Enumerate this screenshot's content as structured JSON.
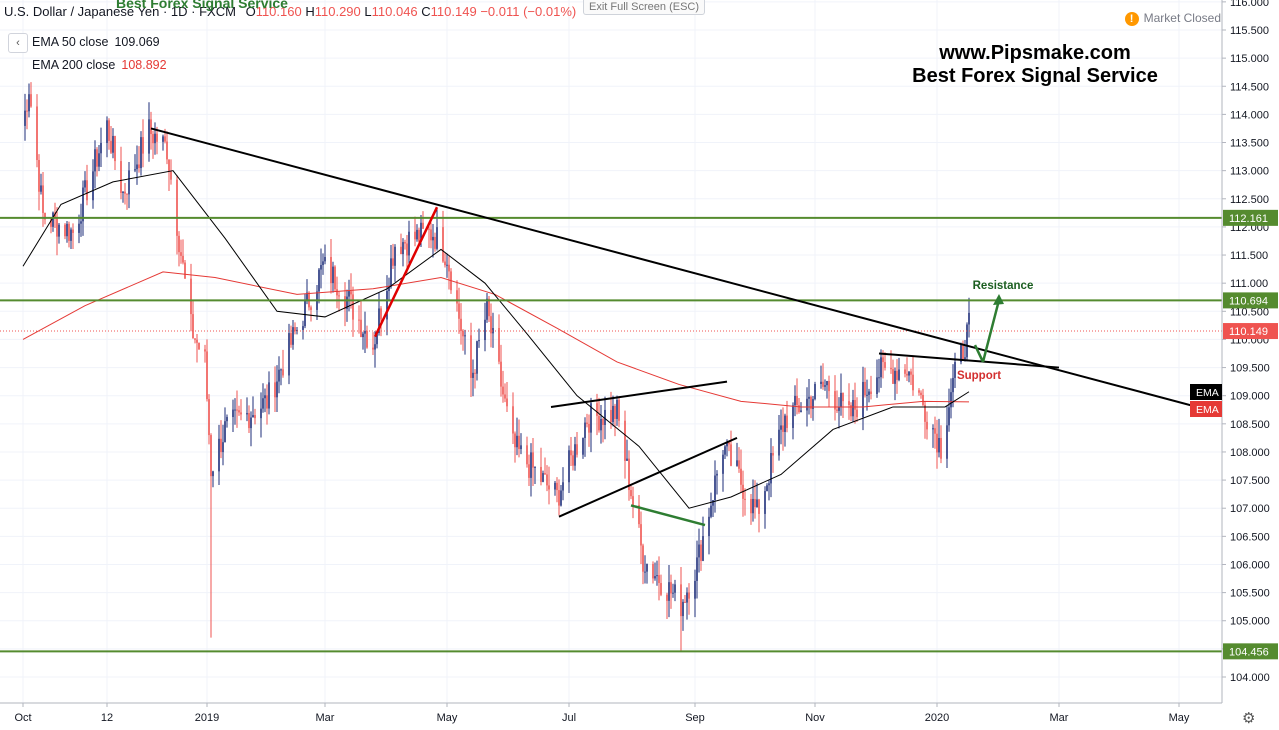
{
  "header": {
    "symbol": "U.S. Dollar / Japanese Yen · 1D · FXCM",
    "open_label": "O",
    "open": "110.160",
    "high_label": "H",
    "high": "110.290",
    "low_label": "L",
    "low": "110.046",
    "close_label": "C",
    "close": "110.149",
    "change": "−0.011 (−0.01%)"
  },
  "legend": {
    "ema50_label": "EMA 50 close",
    "ema50_value": "109.069",
    "ema200_label": "EMA 200 close",
    "ema200_value": "108.892"
  },
  "exit_fullscreen": "Exit Full Screen (ESC)",
  "top_watermark": "Best Forex Signal Service",
  "market_status": "Market Closed",
  "market_status_icon": "!",
  "watermark": {
    "line1": "www.Pipsmake.com",
    "line2": "Best Forex Signal Service"
  },
  "colors": {
    "up": "#1e2e7a",
    "down": "#ef5350",
    "ema50": "#000000",
    "ema200": "#e53935",
    "level": "#558b2f",
    "arrow": "#2e7d32",
    "support": "#d32f2f",
    "resistance": "#1b5e20"
  },
  "chart_data": {
    "type": "candlestick",
    "title": "U.S. Dollar / Japanese Yen",
    "timeframe": "1D",
    "x_labels": [
      {
        "label": "Oct",
        "date": "2018-10-01"
      },
      {
        "label": "12",
        "date": "2018-11-12"
      },
      {
        "label": "2019",
        "date": "2019-01-01"
      },
      {
        "label": "Mar",
        "date": "2019-03-01"
      },
      {
        "label": "May",
        "date": "2019-05-01"
      },
      {
        "label": "Jul",
        "date": "2019-07-01"
      },
      {
        "label": "Sep",
        "date": "2019-09-02"
      },
      {
        "label": "Nov",
        "date": "2019-11-01"
      },
      {
        "label": "2020",
        "date": "2020-01-01"
      },
      {
        "label": "Mar",
        "date": "2020-03-02"
      },
      {
        "label": "May",
        "date": "2020-05-01"
      }
    ],
    "ylim": [
      103.6,
      116.1
    ],
    "y_ticks": [
      104.0,
      104.5,
      105.0,
      105.5,
      106.0,
      106.5,
      107.0,
      107.5,
      108.0,
      108.5,
      109.0,
      109.5,
      110.0,
      110.5,
      111.0,
      111.5,
      112.0,
      112.5,
      113.0,
      113.5,
      114.0,
      114.5,
      115.0,
      115.5,
      116.0
    ],
    "y_tick_labels": [
      "104.000",
      "104.500",
      "105.000",
      "105.500",
      "106.000",
      "106.500",
      "107.000",
      "107.500",
      "108.000",
      "108.500",
      "109.000",
      "109.500",
      "110.000",
      "110.500",
      "111.000",
      "111.500",
      "112.000",
      "112.500",
      "113.000",
      "113.500",
      "114.000",
      "114.500",
      "115.000",
      "115.500",
      "116.000"
    ],
    "price_anchors": [
      [
        "2018-10-01",
        113.8
      ],
      [
        "2018-10-04",
        114.5
      ],
      [
        "2018-10-11",
        112.2
      ],
      [
        "2018-10-26",
        111.9
      ],
      [
        "2018-11-12",
        113.8
      ],
      [
        "2018-11-20",
        112.6
      ],
      [
        "2018-12-03",
        113.7
      ],
      [
        "2018-12-12",
        113.4
      ],
      [
        "2018-12-24",
        110.2
      ],
      [
        "2018-12-31",
        109.6
      ],
      [
        "2019-01-03",
        107.7
      ],
      [
        "2019-01-10",
        108.4
      ],
      [
        "2019-01-31",
        108.9
      ],
      [
        "2019-02-28",
        111.3
      ],
      [
        "2019-03-08",
        111.0
      ],
      [
        "2019-03-25",
        109.9
      ],
      [
        "2019-04-05",
        111.7
      ],
      [
        "2019-04-24",
        111.9
      ],
      [
        "2019-05-01",
        111.5
      ],
      [
        "2019-05-13",
        109.3
      ],
      [
        "2019-05-21",
        110.5
      ],
      [
        "2019-06-03",
        108.1
      ],
      [
        "2019-06-25",
        107.2
      ],
      [
        "2019-07-10",
        108.6
      ],
      [
        "2019-07-25",
        108.7
      ],
      [
        "2019-08-07",
        106.1
      ],
      [
        "2019-08-26",
        105.3
      ],
      [
        "2019-09-03",
        106.0
      ],
      [
        "2019-09-16",
        108.1
      ],
      [
        "2019-10-03",
        106.9
      ],
      [
        "2019-10-17",
        108.6
      ],
      [
        "2019-11-07",
        109.2
      ],
      [
        "2019-11-18",
        108.6
      ],
      [
        "2019-12-01",
        109.4
      ],
      [
        "2019-12-17",
        109.5
      ],
      [
        "2020-01-03",
        108.1
      ],
      [
        "2020-01-08",
        109.1
      ],
      [
        "2020-01-17",
        110.2
      ]
    ],
    "notable_extremes": [
      {
        "date": "2018-10-04",
        "high": 114.55
      },
      {
        "date": "2019-01-03",
        "low": 104.7
      },
      {
        "date": "2019-08-26",
        "low": 104.45
      }
    ],
    "series": [
      {
        "name": "EMA 50 close",
        "last": 109.069
      },
      {
        "name": "EMA 200 close",
        "last": 108.892
      }
    ],
    "ema50_anchors": [
      [
        "2018-10-01",
        111.3
      ],
      [
        "2018-10-20",
        112.4
      ],
      [
        "2018-11-15",
        112.8
      ],
      [
        "2018-12-15",
        113.0
      ],
      [
        "2019-01-10",
        111.8
      ],
      [
        "2019-02-05",
        110.5
      ],
      [
        "2019-03-01",
        110.4
      ],
      [
        "2019-04-01",
        110.9
      ],
      [
        "2019-04-28",
        111.6
      ],
      [
        "2019-05-20",
        111.0
      ],
      [
        "2019-06-10",
        110.1
      ],
      [
        "2019-07-05",
        109.0
      ],
      [
        "2019-08-05",
        108.1
      ],
      [
        "2019-08-30",
        107.0
      ],
      [
        "2019-09-20",
        107.2
      ],
      [
        "2019-10-15",
        107.6
      ],
      [
        "2019-11-10",
        108.4
      ],
      [
        "2019-12-10",
        108.8
      ],
      [
        "2020-01-05",
        108.8
      ],
      [
        "2020-01-17",
        109.07
      ]
    ],
    "ema200_anchors": [
      [
        "2018-10-01",
        110.0
      ],
      [
        "2018-11-01",
        110.6
      ],
      [
        "2018-12-10",
        111.2
      ],
      [
        "2019-01-05",
        111.1
      ],
      [
        "2019-02-15",
        110.8
      ],
      [
        "2019-03-25",
        110.9
      ],
      [
        "2019-04-28",
        111.1
      ],
      [
        "2019-05-25",
        110.8
      ],
      [
        "2019-06-25",
        110.2
      ],
      [
        "2019-07-25",
        109.6
      ],
      [
        "2019-08-25",
        109.2
      ],
      [
        "2019-09-25",
        108.9
      ],
      [
        "2019-10-25",
        108.8
      ],
      [
        "2019-11-25",
        108.8
      ],
      [
        "2019-12-25",
        108.9
      ],
      [
        "2020-01-17",
        108.89
      ]
    ],
    "horizontal_levels": [
      112.161,
      110.694,
      104.456
    ],
    "current_price": 110.149,
    "annotations": [
      {
        "text": "Resistance",
        "date": "2020-01-24",
        "y": 110.9
      },
      {
        "text": "Support",
        "date": "2020-01-22",
        "y": 109.3
      }
    ],
    "trendlines": [
      {
        "color": "black",
        "from": [
          "2018-12-04",
          113.75
        ],
        "to": [
          "2020-06-16",
          108.45
        ]
      },
      {
        "color": "black",
        "from": [
          "2019-12-03",
          109.75
        ],
        "to": [
          "2020-03-02",
          109.5
        ]
      },
      {
        "color": "black",
        "from": [
          "2019-06-22",
          108.8
        ],
        "to": [
          "2019-09-18",
          109.25
        ]
      },
      {
        "color": "black",
        "from": [
          "2019-06-26",
          106.85
        ],
        "to": [
          "2019-09-23",
          108.25
        ]
      },
      {
        "color": "green",
        "from": [
          "2019-08-01",
          107.05
        ],
        "to": [
          "2019-09-07",
          106.7
        ]
      },
      {
        "color": "red",
        "from": [
          "2019-03-26",
          110.05
        ],
        "to": [
          "2019-04-26",
          112.35
        ]
      },
      {
        "color": "green",
        "from": [
          "2020-01-20",
          109.9
        ],
        "to": [
          "2020-01-24",
          109.6
        ]
      },
      {
        "color": "green",
        "from": [
          "2020-01-24",
          109.6
        ],
        "to": [
          "2020-02-01",
          110.7
        ]
      }
    ],
    "price_tags": [
      {
        "text": "112.161",
        "value": 112.161,
        "kind": "level"
      },
      {
        "text": "110.694",
        "value": 110.694,
        "kind": "level"
      },
      {
        "text": "110.149",
        "value": 110.149,
        "kind": "price"
      },
      {
        "text": "104.456",
        "value": 104.456,
        "kind": "level"
      }
    ],
    "ema_tags": [
      {
        "text": "EMA",
        "value": 109.069,
        "series": "ema50"
      },
      {
        "text": "EMA",
        "value": 108.892,
        "series": "ema200"
      }
    ],
    "grid": true,
    "legend_placement": "top-left"
  }
}
